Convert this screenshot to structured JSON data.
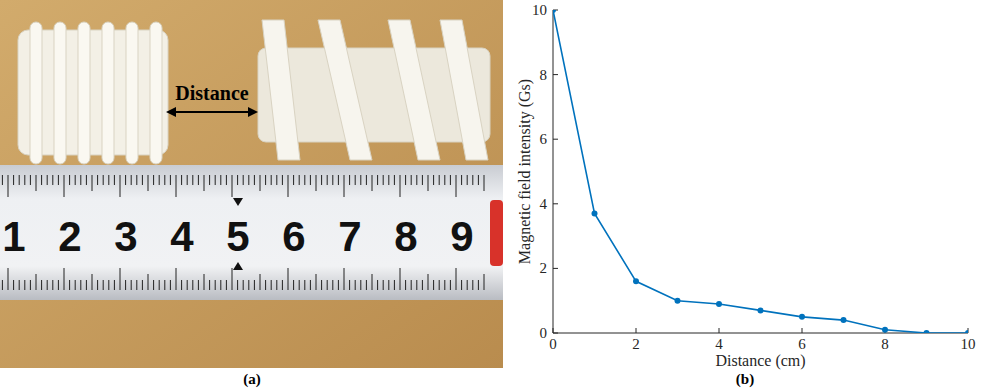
{
  "photo": {
    "label": "(a)",
    "annotation": "Distance",
    "ruler_numbers": [
      1,
      2,
      3,
      4,
      5,
      6,
      7,
      8,
      9
    ]
  },
  "chart_data": {
    "type": "line",
    "caption": "(b)",
    "x_label": "Distance (cm)",
    "y_label": "Magnetic field intensity (Gs)",
    "x": [
      0,
      1,
      2,
      3,
      4,
      5,
      6,
      7,
      8,
      9,
      10
    ],
    "values": [
      10,
      3.7,
      1.6,
      1.0,
      0.9,
      0.7,
      0.5,
      0.4,
      0.1,
      0,
      0
    ],
    "color": "#0072bd",
    "marker": "dot",
    "line_style": "solid",
    "xlim": [
      0,
      10
    ],
    "ylim": [
      0,
      10
    ],
    "xticks": [
      0,
      2,
      4,
      6,
      8,
      10
    ],
    "yticks": [
      0,
      2,
      4,
      6,
      8,
      10
    ],
    "grid": false
  }
}
